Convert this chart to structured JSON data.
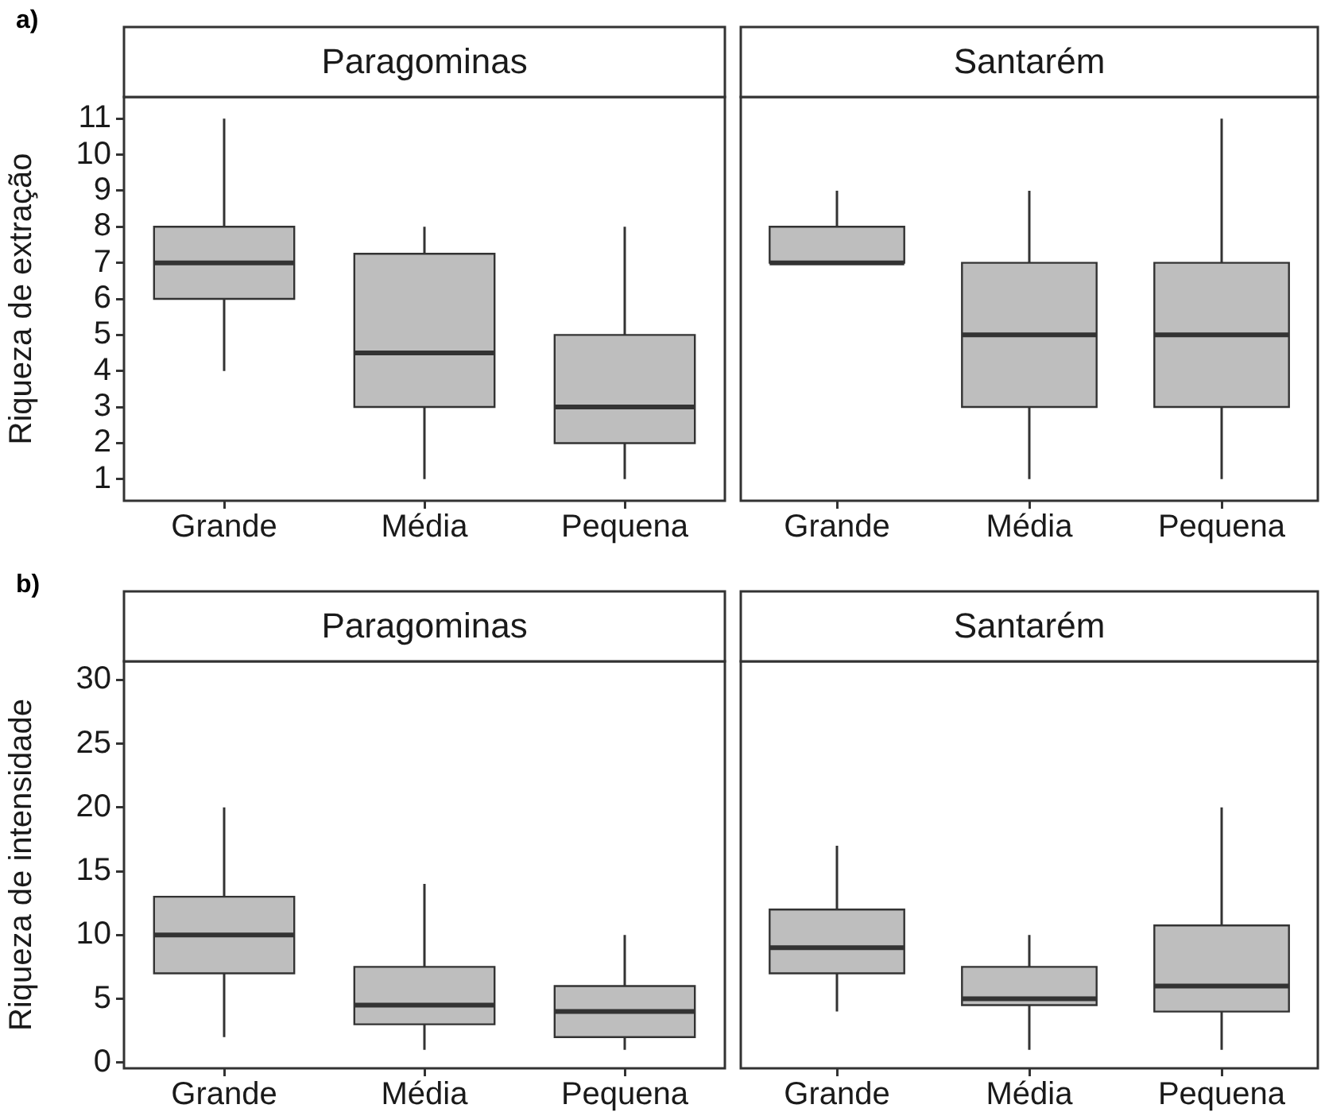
{
  "chart_data": [
    {
      "type": "box",
      "title": "Paragominas",
      "ylabel": "Riqueza de extração",
      "annotations": [
        "a)"
      ],
      "categories": [
        "Grande",
        "Média",
        "Pequena"
      ],
      "color": "#bebebe",
      "ylim": [
        0.4,
        11.6
      ],
      "yticks": [
        1,
        2,
        3,
        4,
        5,
        6,
        7,
        8,
        9,
        10,
        11
      ],
      "boxes": [
        {
          "low": 4,
          "q1": 6,
          "median": 7,
          "q3": 8,
          "high": 11
        },
        {
          "low": 1,
          "q1": 3,
          "median": 4.5,
          "q3": 7.25,
          "high": 8
        },
        {
          "low": 1,
          "q1": 2,
          "median": 3,
          "q3": 5,
          "high": 8
        }
      ]
    },
    {
      "type": "box",
      "title": "Santarém",
      "tick_labels": "x",
      "categories": [
        "Grande",
        "Média",
        "Pequena"
      ],
      "color": "#bebebe",
      "ylim": [
        0.4,
        11.6
      ],
      "boxes": [
        {
          "low": 7,
          "q1": 7,
          "median": 7,
          "q3": 8,
          "high": 9
        },
        {
          "low": 1,
          "q1": 3,
          "median": 5,
          "q3": 7,
          "high": 9
        },
        {
          "low": 1,
          "q1": 3,
          "median": 5,
          "q3": 7,
          "high": 11
        }
      ]
    },
    {
      "type": "box",
      "title": "Paragominas",
      "ylabel": "Riqueza de intensidade",
      "annotations": [
        "b)"
      ],
      "categories": [
        "Grande",
        "Média",
        "Pequena"
      ],
      "color": "#bebebe",
      "ylim": [
        -0.45,
        31.45
      ],
      "yticks": [
        0,
        5,
        10,
        15,
        20,
        25,
        30
      ],
      "boxes": [
        {
          "low": 2,
          "q1": 7,
          "median": 10,
          "q3": 13,
          "high": 20
        },
        {
          "low": 1,
          "q1": 3,
          "median": 4.5,
          "q3": 7.5,
          "high": 14
        },
        {
          "low": 1,
          "q1": 2,
          "median": 4,
          "q3": 6,
          "high": 10
        }
      ]
    },
    {
      "type": "box",
      "title": "Santarém",
      "tick_labels": "x",
      "categories": [
        "Grande",
        "Média",
        "Pequena"
      ],
      "color": "#bebebe",
      "ylim": [
        -0.45,
        31.45
      ],
      "boxes": [
        {
          "low": 4,
          "q1": 7,
          "median": 9,
          "q3": 12,
          "high": 17
        },
        {
          "low": 1,
          "q1": 4.5,
          "median": 5,
          "q3": 7.5,
          "high": 10
        },
        {
          "low": 1,
          "q1": 4,
          "median": 6,
          "q3": 10.75,
          "high": 20
        }
      ]
    }
  ]
}
